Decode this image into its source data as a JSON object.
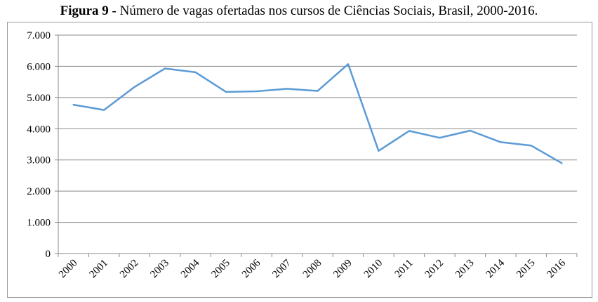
{
  "figure": {
    "label": "Figura 9 -",
    "caption": "Número de vagas ofertadas nos cursos de Ciências Sociais, Brasil, 2000-2016."
  },
  "colors": {
    "line": "#5b9bd5",
    "grid": "#8a8a8a",
    "axis": "#8a8a8a",
    "text": "#000000"
  },
  "chart_data": {
    "type": "line",
    "title": "Número de vagas ofertadas nos cursos de Ciências Sociais, Brasil, 2000-2016.",
    "xlabel": "",
    "ylabel": "",
    "grid": true,
    "legend": "none",
    "ylim": [
      0,
      7000
    ],
    "yticks": [
      0,
      1000,
      2000,
      3000,
      4000,
      5000,
      6000,
      7000
    ],
    "ytick_labels": [
      "0",
      "1.000",
      "2.000",
      "3.000",
      "4.000",
      "5.000",
      "6.000",
      "7.000"
    ],
    "categories": [
      "2000",
      "2001",
      "2002",
      "2003",
      "2004",
      "2005",
      "2006",
      "2007",
      "2008",
      "2009",
      "2010",
      "2011",
      "2012",
      "2013",
      "2014",
      "2015",
      "2016"
    ],
    "series": [
      {
        "name": "Vagas ofertadas",
        "values": [
          4770,
          4600,
          5340,
          5930,
          5810,
          5180,
          5200,
          5280,
          5210,
          6070,
          3290,
          3930,
          3710,
          3940,
          3570,
          3460,
          2900
        ]
      }
    ]
  }
}
